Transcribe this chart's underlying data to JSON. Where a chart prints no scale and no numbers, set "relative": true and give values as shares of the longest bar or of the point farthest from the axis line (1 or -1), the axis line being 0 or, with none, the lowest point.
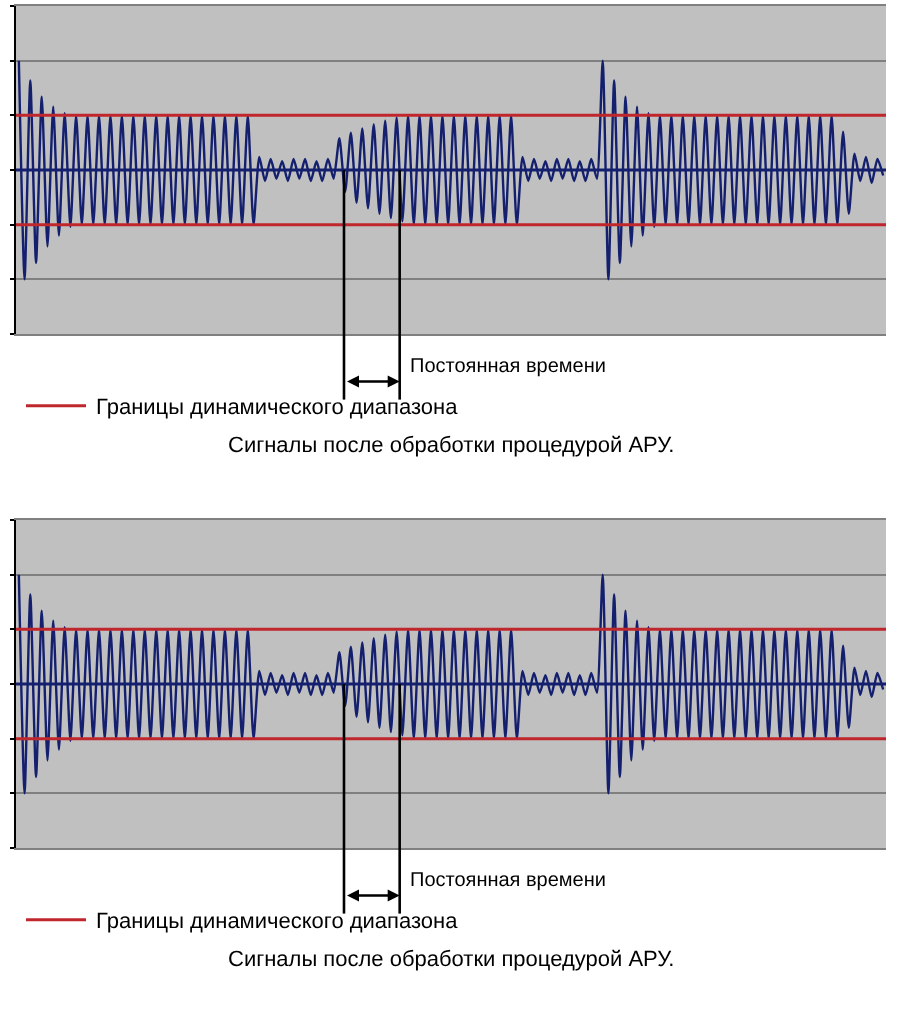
{
  "chart_data": [
    {
      "type": "line",
      "relative": true,
      "categories": [
        null,
        null,
        null,
        null,
        null,
        null,
        null,
        null,
        null,
        null,
        null,
        null,
        null,
        null,
        null,
        null,
        null,
        null,
        null,
        null,
        null,
        null,
        null,
        null,
        null,
        null,
        null,
        null,
        null,
        null,
        null,
        null,
        null,
        null,
        null,
        null,
        null,
        null,
        null,
        null,
        null,
        null,
        null,
        null,
        null,
        null,
        null,
        null,
        null,
        null,
        null,
        null,
        null,
        null,
        null,
        null,
        null,
        null,
        null,
        null,
        null,
        null,
        null,
        null,
        null,
        null,
        null,
        null,
        null,
        null,
        null,
        null,
        null,
        null,
        null,
        null,
        null,
        null,
        null,
        null,
        null,
        null,
        null,
        null,
        null,
        null,
        null,
        null,
        null,
        null,
        null,
        null,
        null,
        null,
        null,
        null,
        null,
        null,
        null,
        null,
        null,
        null,
        null,
        null,
        null,
        null,
        null,
        null,
        null,
        null,
        null,
        null,
        null,
        null,
        null,
        null,
        null,
        null,
        null,
        null,
        null,
        null,
        null,
        null,
        null,
        null,
        null,
        null,
        null,
        null,
        null,
        null,
        null,
        null,
        null,
        null,
        null,
        null,
        null,
        null,
        null,
        null,
        null,
        null,
        null,
        null,
        null,
        null,
        null,
        null,
        null,
        null
      ],
      "series": [
        {
          "color": "#14206e",
          "values": [
            1,
            -1,
            0.82,
            -0.85,
            0.67,
            -0.7,
            0.58,
            -0.6,
            0.52,
            -0.52,
            0.5,
            -0.5,
            0.5,
            -0.5,
            0.5,
            -0.5,
            0.5,
            -0.5,
            0.5,
            -0.5,
            0.5,
            -0.5,
            0.5,
            -0.5,
            0.5,
            -0.5,
            0.5,
            -0.5,
            0.5,
            -0.5,
            0.5,
            -0.5,
            0.5,
            -0.5,
            0.5,
            -0.5,
            0.5,
            -0.5,
            0.5,
            -0.5,
            0.5,
            -0.5,
            0.12,
            -0.1,
            0.1,
            -0.08,
            0.08,
            -0.1,
            0.1,
            -0.08,
            0.1,
            -0.1,
            0.08,
            -0.1,
            0.1,
            -0.08,
            0.29,
            -0.2,
            0.34,
            -0.3,
            0.38,
            -0.35,
            0.42,
            -0.4,
            0.45,
            -0.44,
            0.48,
            -0.47,
            0.5,
            -0.5,
            0.5,
            -0.5,
            0.5,
            -0.5,
            0.5,
            -0.5,
            0.5,
            -0.5,
            0.5,
            -0.5,
            0.5,
            -0.5,
            0.5,
            -0.5,
            0.5,
            -0.5,
            0.5,
            -0.5,
            0.12,
            -0.1,
            0.1,
            -0.08,
            0.08,
            -0.1,
            0.1,
            -0.08,
            0.1,
            -0.1,
            0.08,
            -0.1,
            0.1,
            -0.08,
            1,
            -1,
            0.82,
            -0.85,
            0.67,
            -0.7,
            0.58,
            -0.6,
            0.52,
            -0.52,
            0.5,
            -0.5,
            0.5,
            -0.5,
            0.5,
            -0.5,
            0.5,
            -0.5,
            0.5,
            -0.5,
            0.5,
            -0.5,
            0.5,
            -0.5,
            0.5,
            -0.5,
            0.5,
            -0.5,
            0.5,
            -0.5,
            0.5,
            -0.5,
            0.5,
            -0.5,
            0.5,
            -0.5,
            0.5,
            -0.5,
            0.5,
            -0.5,
            0.5,
            -0.5,
            0.35,
            -0.4,
            0.15,
            -0.1,
            0.12,
            -0.12,
            0.1,
            -0.05
          ]
        }
      ],
      "ref_lines": [
        {
          "axis": "y",
          "value": 0.5,
          "label": "Границы динамического диапазона",
          "color": "#c0272d"
        },
        {
          "axis": "y",
          "value": -0.5,
          "color": "#c0272d"
        },
        {
          "axis": "y",
          "value": 0,
          "color": "#14206e"
        }
      ],
      "annotations": [
        "Постоянная времени",
        "Сигналы после обработки процедурой АРУ."
      ],
      "grid": "y",
      "legend": "bottom left"
    },
    {
      "type": "line",
      "relative": true,
      "categories": [
        null,
        null,
        null,
        null,
        null,
        null,
        null,
        null,
        null,
        null,
        null,
        null,
        null,
        null,
        null,
        null,
        null,
        null,
        null,
        null,
        null,
        null,
        null,
        null,
        null,
        null,
        null,
        null,
        null,
        null,
        null,
        null,
        null,
        null,
        null,
        null,
        null,
        null,
        null,
        null,
        null,
        null,
        null,
        null,
        null,
        null,
        null,
        null,
        null,
        null,
        null,
        null,
        null,
        null,
        null,
        null,
        null,
        null,
        null,
        null,
        null,
        null,
        null,
        null,
        null,
        null,
        null,
        null,
        null,
        null,
        null,
        null,
        null,
        null,
        null,
        null,
        null,
        null,
        null,
        null,
        null,
        null,
        null,
        null,
        null,
        null,
        null,
        null,
        null,
        null,
        null,
        null,
        null,
        null,
        null,
        null,
        null,
        null,
        null,
        null,
        null,
        null,
        null,
        null,
        null,
        null,
        null,
        null,
        null,
        null,
        null,
        null,
        null,
        null,
        null,
        null,
        null,
        null,
        null,
        null,
        null,
        null,
        null,
        null,
        null,
        null,
        null,
        null,
        null,
        null,
        null,
        null,
        null,
        null,
        null,
        null,
        null,
        null,
        null,
        null,
        null,
        null,
        null,
        null,
        null,
        null,
        null,
        null,
        null,
        null,
        null,
        null
      ],
      "series": [
        {
          "color": "#14206e",
          "values": [
            1,
            -1,
            0.82,
            -0.85,
            0.67,
            -0.7,
            0.58,
            -0.6,
            0.52,
            -0.52,
            0.5,
            -0.5,
            0.5,
            -0.5,
            0.5,
            -0.5,
            0.5,
            -0.5,
            0.5,
            -0.5,
            0.5,
            -0.5,
            0.5,
            -0.5,
            0.5,
            -0.5,
            0.5,
            -0.5,
            0.5,
            -0.5,
            0.5,
            -0.5,
            0.5,
            -0.5,
            0.5,
            -0.5,
            0.5,
            -0.5,
            0.5,
            -0.5,
            0.5,
            -0.5,
            0.12,
            -0.1,
            0.1,
            -0.08,
            0.08,
            -0.1,
            0.1,
            -0.08,
            0.1,
            -0.1,
            0.08,
            -0.1,
            0.1,
            -0.08,
            0.29,
            -0.2,
            0.34,
            -0.3,
            0.38,
            -0.35,
            0.42,
            -0.4,
            0.45,
            -0.44,
            0.48,
            -0.47,
            0.5,
            -0.5,
            0.5,
            -0.5,
            0.5,
            -0.5,
            0.5,
            -0.5,
            0.5,
            -0.5,
            0.5,
            -0.5,
            0.5,
            -0.5,
            0.5,
            -0.5,
            0.5,
            -0.5,
            0.5,
            -0.5,
            0.12,
            -0.1,
            0.1,
            -0.08,
            0.08,
            -0.1,
            0.1,
            -0.08,
            0.1,
            -0.1,
            0.08,
            -0.1,
            0.1,
            -0.08,
            1,
            -1,
            0.82,
            -0.85,
            0.67,
            -0.7,
            0.58,
            -0.6,
            0.52,
            -0.52,
            0.5,
            -0.5,
            0.5,
            -0.5,
            0.5,
            -0.5,
            0.5,
            -0.5,
            0.5,
            -0.5,
            0.5,
            -0.5,
            0.5,
            -0.5,
            0.5,
            -0.5,
            0.5,
            -0.5,
            0.5,
            -0.5,
            0.5,
            -0.5,
            0.5,
            -0.5,
            0.5,
            -0.5,
            0.5,
            -0.5,
            0.5,
            -0.5,
            0.5,
            -0.5,
            0.35,
            -0.4,
            0.15,
            -0.1,
            0.12,
            -0.12,
            0.1,
            -0.05
          ]
        }
      ],
      "ref_lines": [
        {
          "axis": "y",
          "value": 0.5,
          "label": "Границы динамического диапазона",
          "color": "#c0272d"
        },
        {
          "axis": "y",
          "value": -0.5,
          "color": "#c0272d"
        },
        {
          "axis": "y",
          "value": 0,
          "color": "#14206e"
        }
      ],
      "annotations": [
        "Постоянная времени",
        "Сигналы после обработки процедурой АРУ."
      ],
      "grid": "y",
      "legend": "bottom left"
    }
  ]
}
